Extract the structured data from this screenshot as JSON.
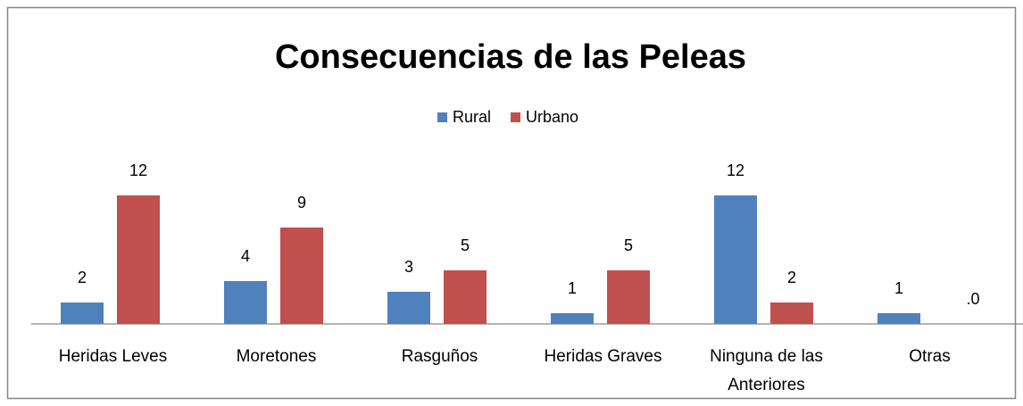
{
  "chart_data": {
    "type": "bar",
    "title": "Consecuencias de las Peleas",
    "categories": [
      "Heridas Leves",
      "Moretones",
      "Rasguños",
      "Heridas Graves",
      "Ninguna de las Anteriores",
      "Otras"
    ],
    "series": [
      {
        "name": "Rural",
        "color": "#4f81bd",
        "values": [
          2,
          4,
          3,
          1,
          12,
          1
        ]
      },
      {
        "name": "Urbano",
        "color": "#c0504d",
        "values": [
          12,
          9,
          5,
          5,
          2,
          0
        ],
        "value_labels": [
          "12",
          "9",
          "5",
          "5",
          "2",
          ".0"
        ]
      }
    ],
    "legend": "top"
  }
}
